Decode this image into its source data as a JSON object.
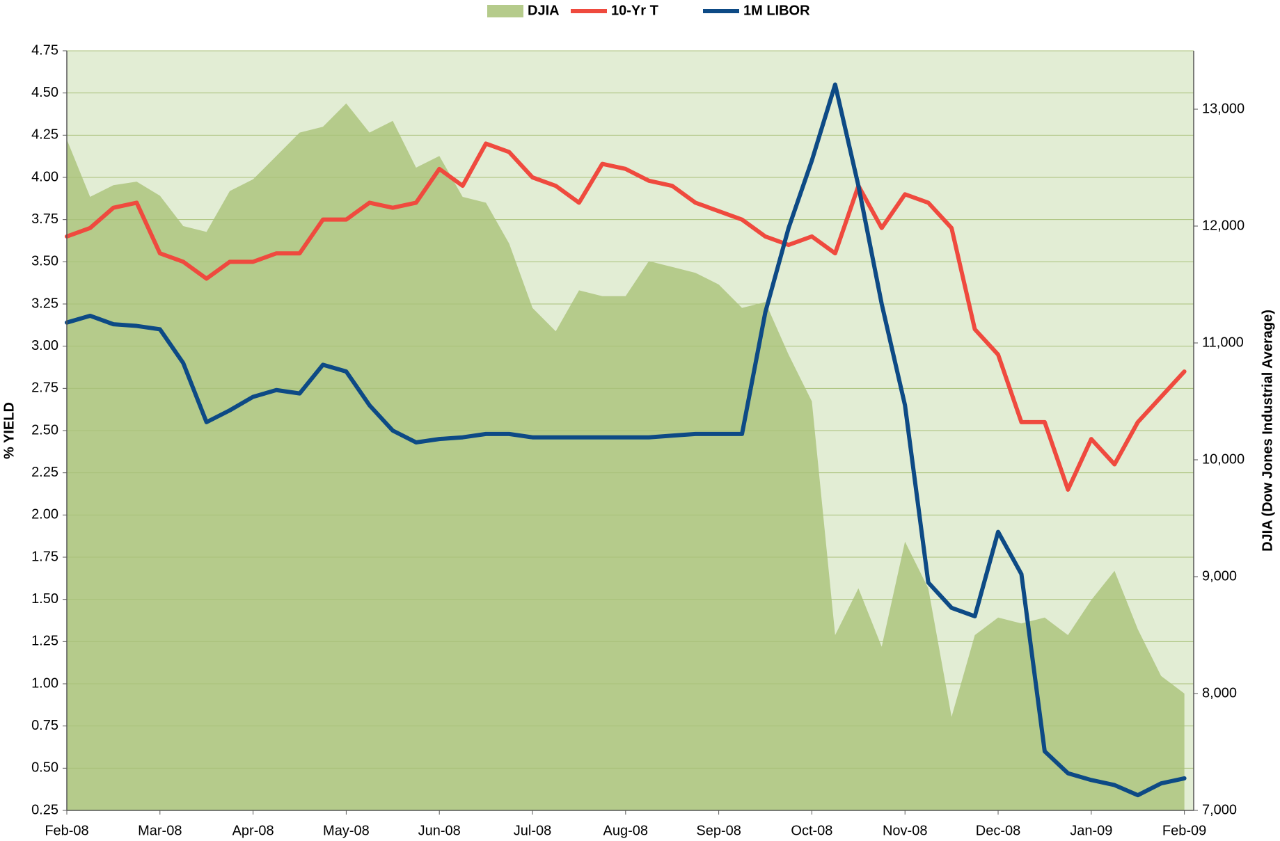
{
  "chart_data": {
    "type": "line",
    "y_label": "% YIELD",
    "y2_label": "DJIA (Dow Jones Industrial Average)",
    "background": "#e2edd4",
    "grid": true,
    "x": [
      0,
      0.25,
      0.5,
      0.75,
      1,
      1.25,
      1.5,
      1.75,
      2,
      2.25,
      2.5,
      2.75,
      3,
      3.25,
      3.5,
      3.75,
      4,
      4.25,
      4.5,
      4.75,
      5,
      5.25,
      5.5,
      5.75,
      6,
      6.25,
      6.5,
      6.75,
      7,
      7.25,
      7.5,
      7.75,
      8,
      8.25,
      8.5,
      8.75,
      9,
      9.25,
      9.5,
      9.75,
      10,
      10.25,
      10.5,
      10.75,
      11,
      11.25,
      11.5,
      11.75,
      12
    ],
    "xlim": [
      0,
      12.1
    ],
    "xticks": [
      {
        "value": 0,
        "label": "Feb-08"
      },
      {
        "value": 1,
        "label": "Mar-08"
      },
      {
        "value": 2,
        "label": "Apr-08"
      },
      {
        "value": 3,
        "label": "May-08"
      },
      {
        "value": 4,
        "label": "Jun-08"
      },
      {
        "value": 5,
        "label": "Jul-08"
      },
      {
        "value": 6,
        "label": "Aug-08"
      },
      {
        "value": 7,
        "label": "Sep-08"
      },
      {
        "value": 8,
        "label": "Oct-08"
      },
      {
        "value": 9,
        "label": "Nov-08"
      },
      {
        "value": 10,
        "label": "Dec-08"
      },
      {
        "value": 11,
        "label": "Jan-09"
      },
      {
        "value": 12,
        "label": "Feb-09"
      }
    ],
    "ylim": [
      0.25,
      4.75
    ],
    "yticks": [
      0.25,
      {
        "value": 0.5,
        "label": "0.50"
      },
      0.75,
      {
        "value": 1,
        "label": "1.00"
      },
      1.25,
      {
        "value": 1.5,
        "label": "1.50"
      },
      1.75,
      {
        "value": 2,
        "label": "2.00"
      },
      2.25,
      {
        "value": 2.5,
        "label": "2.50"
      },
      2.75,
      {
        "value": 3,
        "label": "3.00"
      },
      3.25,
      {
        "value": 3.5,
        "label": "3.50"
      },
      3.75,
      {
        "value": 4,
        "label": "4.00"
      },
      4.25,
      {
        "value": 4.5,
        "label": "4.50"
      },
      4.75
    ],
    "y2lim": [
      7000,
      13500
    ],
    "y2ticks": [
      {
        "value": 7000,
        "label": "7,000"
      },
      {
        "value": 8000,
        "label": "8,000"
      },
      {
        "value": 9000,
        "label": "9,000"
      },
      {
        "value": 10000,
        "label": "10,000"
      },
      {
        "value": 11000,
        "label": "11,000"
      },
      {
        "value": 12000,
        "label": "12,000"
      },
      {
        "value": 13000,
        "label": "13,000"
      }
    ],
    "series": [
      {
        "name": "DJIA",
        "type": "area",
        "axis": "y2",
        "color": "#b5cb8b",
        "values": [
          12740,
          12250,
          12350,
          12380,
          12260,
          12000,
          11950,
          12300,
          12400,
          12600,
          12800,
          12850,
          13050,
          12800,
          12900,
          12500,
          12600,
          12250,
          12200,
          11850,
          11300,
          11100,
          11450,
          11400,
          11400,
          11700,
          11650,
          11600,
          11500,
          11300,
          11350,
          10900,
          10500,
          8500,
          8900,
          8400,
          9300,
          8900,
          7800,
          8500,
          8650,
          8600,
          8650,
          8500,
          8800,
          9050,
          8550,
          8150,
          8000
        ]
      },
      {
        "name": "10-Yr T",
        "type": "line",
        "color": "#ef4a3e",
        "values": [
          3.65,
          3.7,
          3.82,
          3.85,
          3.55,
          3.5,
          3.4,
          3.5,
          3.5,
          3.55,
          3.55,
          3.75,
          3.75,
          3.85,
          3.82,
          3.85,
          4.05,
          3.95,
          4.2,
          4.15,
          4.0,
          3.95,
          3.85,
          4.08,
          4.05,
          3.98,
          3.95,
          3.85,
          3.8,
          3.75,
          3.65,
          3.6,
          3.65,
          3.55,
          3.95,
          3.7,
          3.9,
          3.85,
          3.7,
          3.1,
          2.95,
          2.55,
          2.55,
          2.15,
          2.45,
          2.3,
          2.55,
          2.7,
          2.85
        ]
      },
      {
        "name": "1M LIBOR",
        "type": "line",
        "color": "#0d4a85",
        "values": [
          3.14,
          3.18,
          3.13,
          3.12,
          3.1,
          2.9,
          2.55,
          2.62,
          2.7,
          2.74,
          2.72,
          2.89,
          2.85,
          2.65,
          2.5,
          2.43,
          2.45,
          2.46,
          2.48,
          2.48,
          2.46,
          2.46,
          2.46,
          2.46,
          2.46,
          2.46,
          2.47,
          2.48,
          2.48,
          2.48,
          3.2,
          3.7,
          4.1,
          4.55,
          3.95,
          3.25,
          2.65,
          1.6,
          1.45,
          1.4,
          1.9,
          1.65,
          0.6,
          0.47,
          0.43,
          0.4,
          0.34,
          0.41,
          0.44
        ]
      }
    ]
  }
}
